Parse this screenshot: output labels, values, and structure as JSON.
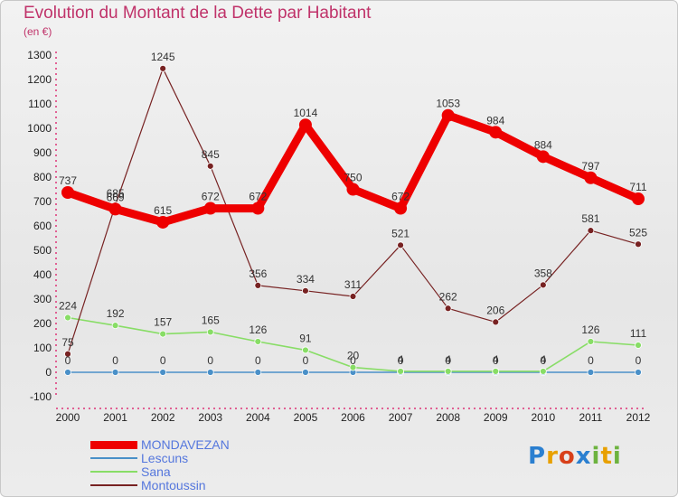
{
  "title": "Evolution du Montant de la Dette par Habitant",
  "subtitle": "(en €)",
  "logo": {
    "text": "Proxiti",
    "letters": [
      {
        "ch": "P",
        "color": "#2a7fd0"
      },
      {
        "ch": "r",
        "color": "#e8a000"
      },
      {
        "ch": "o",
        "color": "#d8401a"
      },
      {
        "ch": "x",
        "color": "#2a7fd0"
      },
      {
        "ch": "i",
        "color": "#6db33f"
      },
      {
        "ch": "t",
        "color": "#e8a000"
      },
      {
        "ch": "i",
        "color": "#6db33f"
      }
    ]
  },
  "chart_data": {
    "type": "line",
    "title": "Evolution du Montant de la Dette par Habitant",
    "subtitle": "(en €)",
    "xlabel": "",
    "ylabel": "",
    "ylim": [
      -100,
      1300
    ],
    "yticks": [
      -100,
      0,
      100,
      200,
      300,
      400,
      500,
      600,
      700,
      800,
      900,
      1000,
      1100,
      1200,
      1300
    ],
    "grid": false,
    "legend_position": "bottom-left",
    "x": [
      "2000",
      "2001",
      "2002",
      "2003",
      "2004",
      "2005",
      "2006",
      "2007",
      "2008",
      "2009",
      "2010",
      "2011",
      "2012"
    ],
    "series": [
      {
        "name": "MONDAVEZAN",
        "color": "#ee0000",
        "values": [
          737,
          669,
          615,
          672,
          672,
          1014,
          750,
          672,
          1053,
          984,
          884,
          797,
          711
        ]
      },
      {
        "name": "Lescuns",
        "color": "#4a90c8",
        "values": [
          0,
          0,
          0,
          0,
          0,
          0,
          0,
          0,
          0,
          0,
          0,
          0,
          0
        ]
      },
      {
        "name": "Sana",
        "color": "#88dd66",
        "values": [
          224,
          192,
          157,
          165,
          126,
          91,
          20,
          4,
          4,
          4,
          4,
          126,
          111
        ]
      },
      {
        "name": "Montoussin",
        "color": "#772222",
        "values": [
          75,
          685,
          1245,
          845,
          356,
          334,
          311,
          521,
          262,
          206,
          358,
          581,
          525
        ]
      }
    ]
  }
}
